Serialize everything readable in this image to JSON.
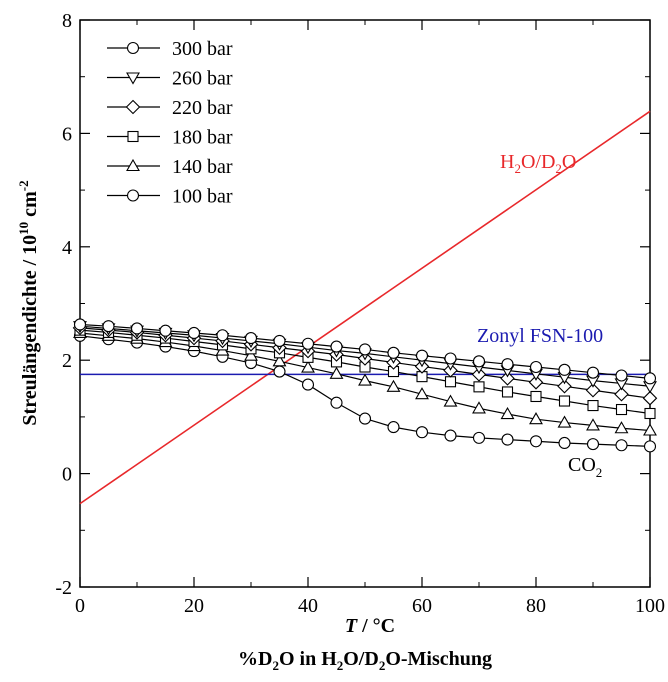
{
  "chart_data": {
    "type": "line",
    "xlim": [
      0,
      100
    ],
    "ylim": [
      -2,
      8
    ],
    "xticks": [
      0,
      20,
      40,
      60,
      80,
      100
    ],
    "yticks": [
      -2,
      0,
      2,
      4,
      6,
      8
    ],
    "x": [
      0,
      5,
      10,
      15,
      20,
      25,
      30,
      35,
      40,
      45,
      50,
      55,
      60,
      65,
      70,
      75,
      80,
      85,
      90,
      95,
      100
    ],
    "xlabel": {
      "t_symbol": "T",
      "t_unit": " / °C",
      "mix_prefix": "%D",
      "mix_sub1": "2",
      "mix_mid1": "O in H",
      "mix_sub2": "2",
      "mix_mid2": "O/D",
      "mix_sub3": "2",
      "mix_suffix": "O-Mischung"
    },
    "ylabel": {
      "main": "Streulängendichte / 10",
      "exp1": "10",
      "unit": " cm",
      "exp2": "-2"
    },
    "legend_position": "top-left",
    "series": [
      {
        "name": "300 bar",
        "marker": "circle",
        "values": [
          2.63,
          2.6,
          2.56,
          2.52,
          2.48,
          2.44,
          2.39,
          2.34,
          2.29,
          2.24,
          2.19,
          2.13,
          2.08,
          2.03,
          1.98,
          1.93,
          1.88,
          1.83,
          1.78,
          1.73,
          1.68
        ]
      },
      {
        "name": "260 bar",
        "marker": "triangle-down",
        "values": [
          2.6,
          2.56,
          2.52,
          2.48,
          2.44,
          2.39,
          2.34,
          2.29,
          2.23,
          2.17,
          2.12,
          2.06,
          2.0,
          1.94,
          1.88,
          1.82,
          1.76,
          1.7,
          1.64,
          1.59,
          1.54
        ]
      },
      {
        "name": "220 bar",
        "marker": "diamond",
        "values": [
          2.57,
          2.53,
          2.49,
          2.44,
          2.39,
          2.34,
          2.28,
          2.22,
          2.16,
          2.1,
          2.03,
          1.96,
          1.89,
          1.82,
          1.75,
          1.68,
          1.61,
          1.54,
          1.47,
          1.4,
          1.33
        ]
      },
      {
        "name": "180 bar",
        "marker": "square",
        "values": [
          2.53,
          2.49,
          2.44,
          2.39,
          2.33,
          2.27,
          2.2,
          2.13,
          2.05,
          1.97,
          1.88,
          1.8,
          1.71,
          1.62,
          1.53,
          1.44,
          1.36,
          1.28,
          1.2,
          1.13,
          1.06
        ]
      },
      {
        "name": "140 bar",
        "marker": "triangle-up",
        "values": [
          2.48,
          2.43,
          2.38,
          2.32,
          2.25,
          2.17,
          2.08,
          1.98,
          1.87,
          1.76,
          1.64,
          1.53,
          1.4,
          1.27,
          1.15,
          1.05,
          0.96,
          0.9,
          0.85,
          0.8,
          0.76
        ]
      },
      {
        "name": "100 bar",
        "marker": "circle",
        "values": [
          2.43,
          2.37,
          2.31,
          2.24,
          2.16,
          2.06,
          1.95,
          1.8,
          1.57,
          1.25,
          0.97,
          0.82,
          0.73,
          0.67,
          0.63,
          0.6,
          0.57,
          0.54,
          0.52,
          0.5,
          0.48
        ]
      }
    ],
    "reference_lines": [
      {
        "name_parts": [
          "H",
          "2",
          "O/D",
          "2",
          "O"
        ],
        "color": "#e8282b",
        "x": [
          0,
          100
        ],
        "values": [
          -0.53,
          6.39
        ]
      },
      {
        "name": "Zonyl FSN-100",
        "color": "#1b1bb0",
        "x": [
          0,
          100
        ],
        "values": [
          1.75,
          1.75
        ]
      }
    ],
    "annotations": [
      {
        "text_parts": [
          "CO",
          "2"
        ],
        "x": 95,
        "y": 0.02
      }
    ],
    "grid": false
  }
}
